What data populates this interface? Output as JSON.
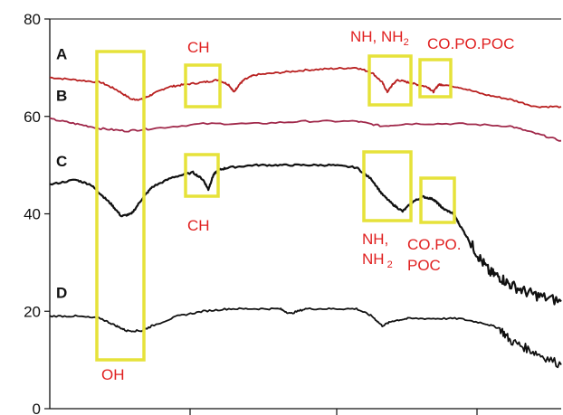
{
  "chart_data": {
    "type": "line",
    "title": "",
    "xlabel": "",
    "ylabel": "",
    "ylim": [
      0,
      80
    ],
    "yticks": [
      0,
      20,
      40,
      60,
      80
    ],
    "xlim": [
      0,
      1
    ],
    "grid": false,
    "series": [
      {
        "name": "A",
        "color": "#b81f1f",
        "x": [
          0.0,
          0.05,
          0.1,
          0.13,
          0.16,
          0.18,
          0.2,
          0.23,
          0.26,
          0.3,
          0.33,
          0.35,
          0.36,
          0.37,
          0.38,
          0.4,
          0.45,
          0.5,
          0.55,
          0.6,
          0.63,
          0.65,
          0.66,
          0.67,
          0.68,
          0.7,
          0.72,
          0.74,
          0.75,
          0.76,
          0.77,
          0.8,
          0.85,
          0.9,
          0.95,
          1.0
        ],
        "values": [
          68,
          67.5,
          67,
          65.5,
          63.5,
          63.5,
          64.5,
          66,
          66.5,
          67,
          67.5,
          66.5,
          65,
          66.5,
          67.5,
          68.5,
          69,
          69.5,
          69.8,
          70,
          69,
          67,
          65,
          66.5,
          67.5,
          67,
          66.5,
          66,
          65,
          66.5,
          66.5,
          66,
          64.5,
          63.5,
          62,
          62
        ]
      },
      {
        "name": "B",
        "color": "#a0284a",
        "x": [
          0.0,
          0.05,
          0.1,
          0.15,
          0.2,
          0.3,
          0.4,
          0.5,
          0.6,
          0.65,
          0.7,
          0.8,
          0.9,
          0.95,
          1.0
        ],
        "values": [
          59.5,
          58.5,
          57.5,
          57,
          57.5,
          58.5,
          58.5,
          59,
          59,
          58,
          58.5,
          58.5,
          58,
          56.5,
          55
        ]
      },
      {
        "name": "C",
        "color": "#111111",
        "x": [
          0.0,
          0.05,
          0.08,
          0.1,
          0.12,
          0.14,
          0.16,
          0.18,
          0.2,
          0.24,
          0.28,
          0.3,
          0.31,
          0.32,
          0.33,
          0.35,
          0.4,
          0.45,
          0.5,
          0.55,
          0.6,
          0.63,
          0.65,
          0.67,
          0.69,
          0.71,
          0.73,
          0.75,
          0.76,
          0.77,
          0.79,
          0.8,
          0.82,
          0.84,
          0.86,
          0.88,
          0.9,
          0.93,
          0.96,
          1.0
        ],
        "values": [
          46,
          47,
          46,
          44,
          42,
          39.5,
          40,
          43,
          45.5,
          47.5,
          48.5,
          47,
          45,
          48,
          49,
          49.5,
          50,
          50,
          50,
          50,
          49.5,
          47,
          44,
          42,
          40.5,
          42.5,
          43.5,
          43,
          42,
          41,
          40,
          38,
          34.5,
          31,
          28,
          27,
          25.5,
          24,
          23,
          22
        ]
      },
      {
        "name": "D",
        "color": "#111111",
        "x": [
          0.0,
          0.05,
          0.1,
          0.13,
          0.15,
          0.18,
          0.2,
          0.25,
          0.3,
          0.35,
          0.4,
          0.45,
          0.47,
          0.5,
          0.55,
          0.6,
          0.63,
          0.65,
          0.67,
          0.7,
          0.75,
          0.8,
          0.85,
          0.88,
          0.9,
          0.93,
          0.96,
          1.0
        ],
        "values": [
          19,
          19,
          18.5,
          17,
          16,
          16,
          17,
          19,
          20,
          20.5,
          20.5,
          20.5,
          19.5,
          20.5,
          20.5,
          20.5,
          19,
          17,
          18,
          18.5,
          18.5,
          18.5,
          17.5,
          16.5,
          14,
          12.5,
          11,
          9
        ]
      }
    ],
    "annotations": {
      "oh": "OH",
      "ch_top": "CH",
      "nh_top_main": "NH, NH",
      "nh_top_sub": "2",
      "copo_top": "CO.PO.POC",
      "ch_mid": "CH",
      "nh_mid_line1": "NH,",
      "nh_mid_line2_main": "NH",
      "nh_mid_line2_sub": "2",
      "copo_mid_line1": "CO.PO.",
      "copo_mid_line2": "POC"
    },
    "annotation_color": "#e02020",
    "box_color": "#e6e23a"
  }
}
